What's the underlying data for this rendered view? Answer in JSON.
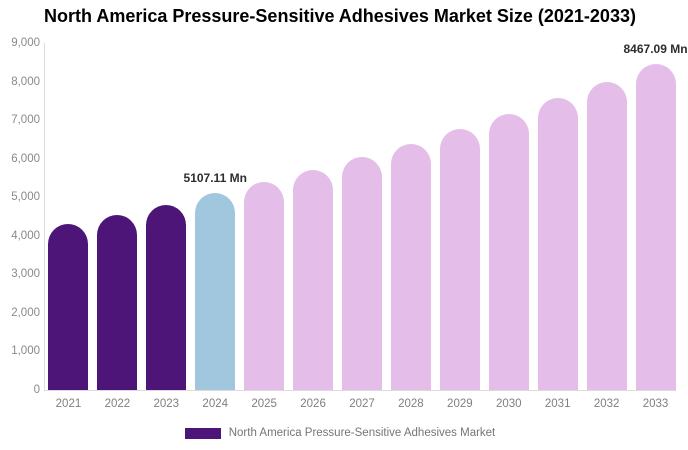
{
  "title": "North America Pressure-Sensitive Adhesives Market Size (2021-2033)",
  "legend": {
    "label": "North America Pressure-Sensitive Adhesives Market",
    "swatch_color": "#4C1577"
  },
  "colors": {
    "historical_bar": "#4C1577",
    "base_year_bar": "#A0C7DD",
    "forecast_bar": "#E4BDE8",
    "axis_line": "#dcdcdc",
    "tick_text": "#8a8a8a",
    "data_label_text": "#2d2d2d"
  },
  "chart_data": {
    "type": "bar",
    "title": "North America Pressure-Sensitive Adhesives Market Size (2021-2033)",
    "series_name": "North America Pressure-Sensitive Adhesives Market",
    "unit": "Mn",
    "categories": [
      "2021",
      "2022",
      "2023",
      "2024",
      "2025",
      "2026",
      "2027",
      "2028",
      "2029",
      "2030",
      "2031",
      "2032",
      "2033"
    ],
    "values": [
      4300,
      4550,
      4810,
      5107.11,
      5400,
      5715,
      6045,
      6390,
      6760,
      7150,
      7570,
      8000,
      8467.09
    ],
    "values_note": "Only 2024 and 2033 carry printed data labels; other values estimated from bar heights against the y-axis.",
    "bar_colors": [
      "#4C1577",
      "#4C1577",
      "#4C1577",
      "#A0C7DD",
      "#E4BDE8",
      "#E4BDE8",
      "#E4BDE8",
      "#E4BDE8",
      "#E4BDE8",
      "#E4BDE8",
      "#E4BDE8",
      "#E4BDE8",
      "#E4BDE8"
    ],
    "data_labels": [
      {
        "category": "2024",
        "text": "5107.11 Mn"
      },
      {
        "category": "2033",
        "text": "8467.09 Mn"
      }
    ],
    "xlabel": "",
    "ylabel": "",
    "ylim": [
      0,
      9000
    ],
    "y_ticks_desc": [
      "9,000",
      "8,000",
      "7,000",
      "6,000",
      "5,000",
      "4,000",
      "3,000",
      "2,000",
      "1,000",
      "0"
    ],
    "grid": false,
    "legend_position": "bottom-center"
  }
}
